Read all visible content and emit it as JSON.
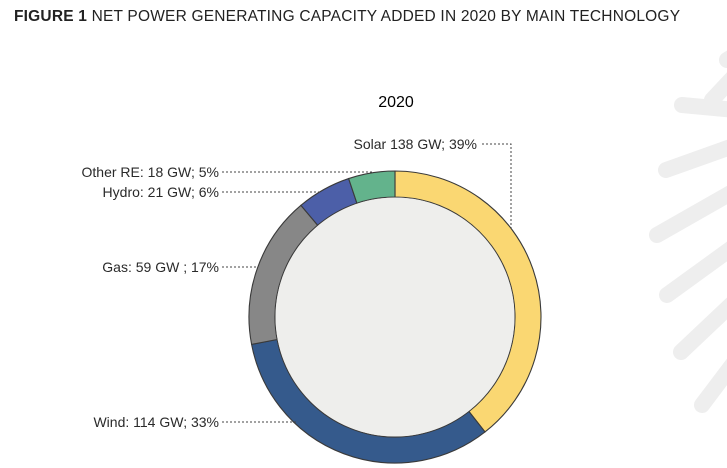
{
  "figure": {
    "number_label": "FIGURE 1",
    "title": "NET POWER GENERATING CAPACITY ADDED IN 2020 BY MAIN TECHNOLOGY"
  },
  "chart_data": {
    "type": "pie",
    "title": "2020",
    "unit": "GW",
    "slices": [
      {
        "name": "Solar",
        "value": 138,
        "percent": 39,
        "color": "#FAD772",
        "label": "Solar 138 GW; 39%"
      },
      {
        "name": "Wind",
        "value": 114,
        "percent": 33,
        "color": "#355A8C",
        "label": "Wind: 114 GW; 33%"
      },
      {
        "name": "Gas",
        "value": 59,
        "percent": 17,
        "color": "#878787",
        "label": "Gas: 59 GW ; 17%"
      },
      {
        "name": "Hydro",
        "value": 21,
        "percent": 6,
        "color": "#4C5FA8",
        "label": "Hydro: 21 GW; 6%"
      },
      {
        "name": "Other RE",
        "value": 18,
        "percent": 5,
        "color": "#63B38C",
        "label": "Other RE: 18 GW; 5%"
      }
    ],
    "center_color": "#EEEEEC"
  }
}
